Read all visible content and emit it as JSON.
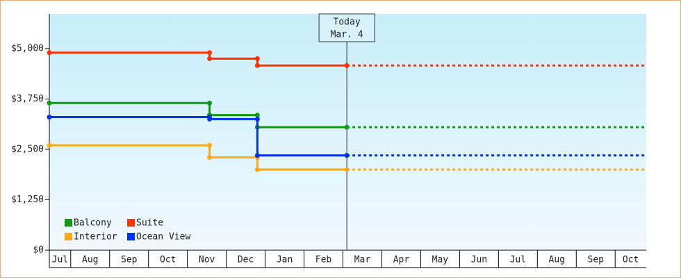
{
  "chart_data": {
    "type": "step",
    "categories": [
      "Jul",
      "Aug",
      "Sep",
      "Oct",
      "Nov",
      "Dec",
      "Jan",
      "Feb",
      "Mar",
      "Apr",
      "May",
      "Jun",
      "Jul",
      "Aug",
      "Sep",
      "Oct"
    ],
    "xlim": [
      0.45,
      15.8
    ],
    "ylim": [
      0,
      5860
    ],
    "yticks": [
      {
        "value": 0,
        "label": "$0"
      },
      {
        "value": 1250,
        "label": "$1,250"
      },
      {
        "value": 2500,
        "label": "$2,500"
      },
      {
        "value": 3750,
        "label": "$3,750"
      },
      {
        "value": 5000,
        "label": "$5,000"
      }
    ],
    "legend": "lower left",
    "annotation": {
      "lines": [
        "Today",
        "Mar. 4"
      ],
      "x": 8.1
    },
    "series": [
      {
        "name": "Balcony",
        "color": "#119911",
        "x": [
          0.45,
          4.57,
          5.8,
          8.1
        ],
        "values": [
          3650,
          3350,
          3050,
          3050
        ]
      },
      {
        "name": "Suite",
        "color": "#ff3300",
        "x": [
          0.45,
          4.57,
          5.8,
          8.1
        ],
        "values": [
          4900,
          4750,
          4580,
          4580
        ]
      },
      {
        "name": "Interior",
        "color": "#ffaa11",
        "x": [
          0.45,
          4.57,
          5.8,
          8.1
        ],
        "values": [
          2600,
          2300,
          2000,
          2000
        ]
      },
      {
        "name": "Ocean View",
        "color": "#0033ee",
        "x": [
          0.45,
          4.57,
          5.8,
          8.1
        ],
        "values": [
          3300,
          3250,
          2350,
          2350
        ]
      }
    ]
  }
}
